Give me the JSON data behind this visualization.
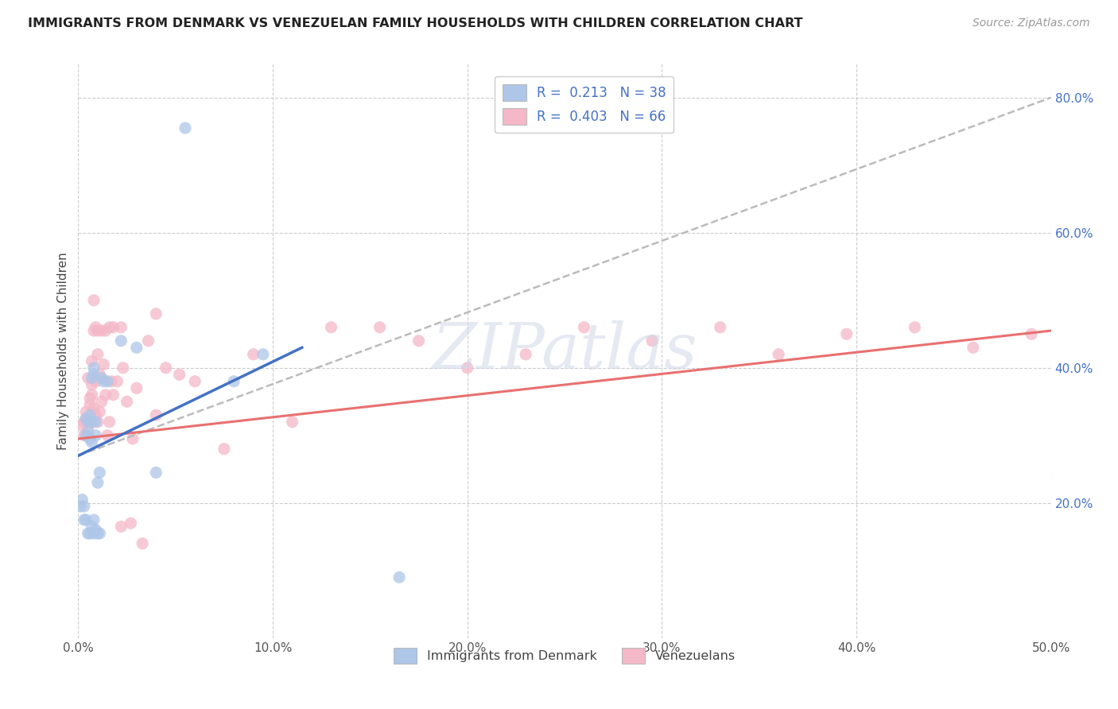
{
  "title": "IMMIGRANTS FROM DENMARK VS VENEZUELAN FAMILY HOUSEHOLDS WITH CHILDREN CORRELATION CHART",
  "source": "Source: ZipAtlas.com",
  "ylabel": "Family Households with Children",
  "xlim": [
    0.0,
    0.5
  ],
  "ylim": [
    0.0,
    0.85
  ],
  "xticks": [
    0.0,
    0.1,
    0.2,
    0.3,
    0.4,
    0.5
  ],
  "yticks": [
    0.2,
    0.4,
    0.6,
    0.8
  ],
  "xtick_labels": [
    "0.0%",
    "10.0%",
    "20.0%",
    "30.0%",
    "40.0%",
    "50.0%"
  ],
  "ytick_labels_right": [
    "20.0%",
    "40.0%",
    "60.0%",
    "80.0%"
  ],
  "legend_label1": "Immigrants from Denmark",
  "legend_label2": "Venezuelans",
  "R1": 0.213,
  "N1": 38,
  "R2": 0.403,
  "N2": 66,
  "color_denmark": "#aec6e8",
  "color_venezuela": "#f4b8c8",
  "color_denmark_line": "#4472c4",
  "color_venezuela_line": "#e87070",
  "color_dashed": "#bbbbbb",
  "background_color": "#ffffff",
  "watermark_color": "#d0d8e8",
  "denmark_scatter_x": [
    0.001,
    0.002,
    0.003,
    0.003,
    0.004,
    0.004,
    0.004,
    0.005,
    0.005,
    0.005,
    0.006,
    0.006,
    0.006,
    0.007,
    0.007,
    0.007,
    0.007,
    0.008,
    0.008,
    0.008,
    0.008,
    0.009,
    0.009,
    0.009,
    0.01,
    0.01,
    0.011,
    0.011,
    0.012,
    0.013,
    0.015,
    0.022,
    0.03,
    0.04,
    0.055,
    0.08,
    0.095,
    0.165
  ],
  "denmark_scatter_y": [
    0.195,
    0.205,
    0.195,
    0.175,
    0.325,
    0.3,
    0.175,
    0.305,
    0.32,
    0.155,
    0.33,
    0.155,
    0.295,
    0.32,
    0.29,
    0.165,
    0.385,
    0.39,
    0.4,
    0.155,
    0.175,
    0.32,
    0.3,
    0.16,
    0.23,
    0.155,
    0.245,
    0.155,
    0.385,
    0.38,
    0.38,
    0.44,
    0.43,
    0.245,
    0.755,
    0.38,
    0.42,
    0.09
  ],
  "venezuela_scatter_x": [
    0.002,
    0.003,
    0.003,
    0.004,
    0.004,
    0.005,
    0.005,
    0.006,
    0.006,
    0.006,
    0.007,
    0.007,
    0.007,
    0.008,
    0.008,
    0.009,
    0.009,
    0.01,
    0.01,
    0.011,
    0.011,
    0.012,
    0.013,
    0.014,
    0.015,
    0.016,
    0.017,
    0.018,
    0.02,
    0.022,
    0.023,
    0.025,
    0.027,
    0.03,
    0.033,
    0.036,
    0.04,
    0.045,
    0.052,
    0.06,
    0.075,
    0.09,
    0.11,
    0.13,
    0.155,
    0.175,
    0.2,
    0.23,
    0.26,
    0.295,
    0.33,
    0.36,
    0.395,
    0.43,
    0.46,
    0.49,
    0.008,
    0.009,
    0.01,
    0.012,
    0.014,
    0.016,
    0.018,
    0.022,
    0.028,
    0.04
  ],
  "venezuela_scatter_y": [
    0.315,
    0.3,
    0.32,
    0.325,
    0.335,
    0.31,
    0.385,
    0.32,
    0.345,
    0.355,
    0.41,
    0.36,
    0.375,
    0.34,
    0.5,
    0.33,
    0.38,
    0.42,
    0.32,
    0.335,
    0.39,
    0.35,
    0.405,
    0.36,
    0.3,
    0.32,
    0.38,
    0.46,
    0.38,
    0.46,
    0.4,
    0.35,
    0.17,
    0.37,
    0.14,
    0.44,
    0.48,
    0.4,
    0.39,
    0.38,
    0.28,
    0.42,
    0.32,
    0.46,
    0.46,
    0.44,
    0.4,
    0.42,
    0.46,
    0.44,
    0.46,
    0.42,
    0.45,
    0.46,
    0.43,
    0.45,
    0.455,
    0.46,
    0.455,
    0.455,
    0.455,
    0.46,
    0.36,
    0.165,
    0.295,
    0.33
  ]
}
